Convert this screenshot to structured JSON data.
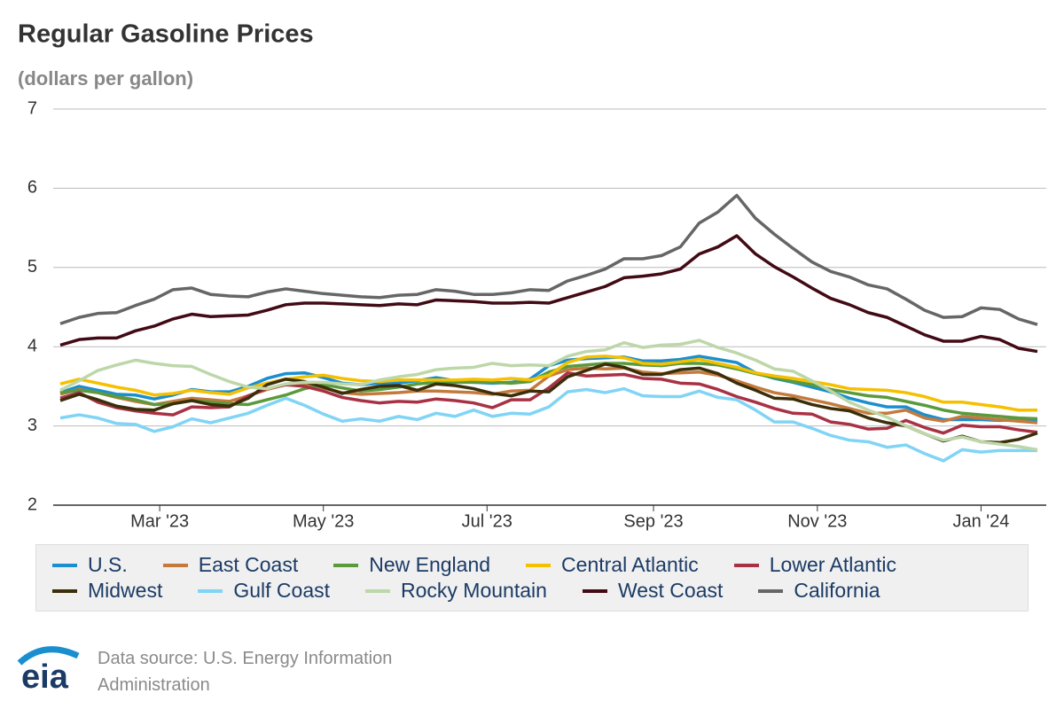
{
  "chart_data": {
    "type": "line",
    "title": "Regular Gasoline Prices",
    "subtitle": "(dollars per gallon)",
    "xlim": [
      0,
      52
    ],
    "xticks": [
      {
        "value": 5.29,
        "label": "Mar '23"
      },
      {
        "value": 14.0,
        "label": "May '23"
      },
      {
        "value": 22.71,
        "label": "Jul '23"
      },
      {
        "value": 31.57,
        "label": "Sep '23"
      },
      {
        "value": 40.29,
        "label": "Nov '23"
      },
      {
        "value": 49.0,
        "label": "Jan '24"
      }
    ],
    "ylim": [
      2,
      7
    ],
    "yticks": [
      2,
      3,
      4,
      5,
      6,
      7
    ],
    "grid": true,
    "legend": "bottom",
    "series": [
      {
        "name": "U.S.",
        "color": "#1a8fd0",
        "values": [
          3.42,
          3.5,
          3.45,
          3.4,
          3.39,
          3.34,
          3.39,
          3.46,
          3.43,
          3.43,
          3.5,
          3.6,
          3.66,
          3.67,
          3.61,
          3.54,
          3.52,
          3.54,
          3.54,
          3.57,
          3.61,
          3.57,
          3.55,
          3.54,
          3.55,
          3.59,
          3.76,
          3.83,
          3.85,
          3.86,
          3.87,
          3.82,
          3.82,
          3.84,
          3.88,
          3.84,
          3.8,
          3.67,
          3.6,
          3.55,
          3.49,
          3.43,
          3.35,
          3.29,
          3.24,
          3.24,
          3.14,
          3.08,
          3.08,
          3.08,
          3.07,
          3.08,
          3.07
        ]
      },
      {
        "name": "East Coast",
        "color": "#c47a3c",
        "values": [
          3.4,
          3.46,
          3.42,
          3.36,
          3.31,
          3.27,
          3.31,
          3.35,
          3.33,
          3.31,
          3.38,
          3.46,
          3.52,
          3.53,
          3.48,
          3.42,
          3.4,
          3.41,
          3.42,
          3.44,
          3.44,
          3.43,
          3.42,
          3.4,
          3.44,
          3.45,
          3.63,
          3.71,
          3.73,
          3.72,
          3.73,
          3.68,
          3.66,
          3.67,
          3.68,
          3.64,
          3.57,
          3.49,
          3.42,
          3.38,
          3.33,
          3.28,
          3.22,
          3.16,
          3.16,
          3.2,
          3.1,
          3.06,
          3.12,
          3.1,
          3.08,
          3.06,
          3.04
        ]
      },
      {
        "name": "New England",
        "color": "#5a9a3c",
        "values": [
          3.42,
          3.45,
          3.42,
          3.37,
          3.33,
          3.27,
          3.28,
          3.32,
          3.3,
          3.28,
          3.27,
          3.33,
          3.39,
          3.47,
          3.52,
          3.48,
          3.44,
          3.46,
          3.49,
          3.53,
          3.55,
          3.55,
          3.55,
          3.55,
          3.54,
          3.56,
          3.68,
          3.75,
          3.77,
          3.79,
          3.79,
          3.77,
          3.76,
          3.79,
          3.79,
          3.77,
          3.72,
          3.66,
          3.61,
          3.56,
          3.52,
          3.46,
          3.42,
          3.38,
          3.36,
          3.31,
          3.26,
          3.2,
          3.16,
          3.14,
          3.12,
          3.1,
          3.09
        ]
      },
      {
        "name": "Central Atlantic",
        "color": "#f5c000",
        "values": [
          3.53,
          3.59,
          3.54,
          3.49,
          3.45,
          3.39,
          3.41,
          3.45,
          3.42,
          3.4,
          3.48,
          3.54,
          3.59,
          3.62,
          3.64,
          3.6,
          3.57,
          3.56,
          3.58,
          3.58,
          3.58,
          3.58,
          3.59,
          3.58,
          3.6,
          3.58,
          3.64,
          3.8,
          3.87,
          3.88,
          3.86,
          3.79,
          3.78,
          3.81,
          3.84,
          3.79,
          3.74,
          3.67,
          3.63,
          3.6,
          3.56,
          3.52,
          3.47,
          3.46,
          3.45,
          3.42,
          3.37,
          3.3,
          3.3,
          3.27,
          3.24,
          3.2,
          3.2
        ]
      },
      {
        "name": "Lower Atlantic",
        "color": "#a83244",
        "values": [
          3.35,
          3.42,
          3.3,
          3.23,
          3.19,
          3.16,
          3.14,
          3.24,
          3.23,
          3.24,
          3.38,
          3.47,
          3.52,
          3.5,
          3.44,
          3.36,
          3.32,
          3.29,
          3.31,
          3.3,
          3.34,
          3.32,
          3.29,
          3.23,
          3.33,
          3.33,
          3.48,
          3.67,
          3.63,
          3.64,
          3.65,
          3.6,
          3.59,
          3.54,
          3.53,
          3.46,
          3.37,
          3.3,
          3.22,
          3.16,
          3.15,
          3.05,
          3.02,
          2.96,
          2.97,
          3.07,
          2.98,
          2.91,
          3.01,
          2.99,
          2.99,
          2.95,
          2.92
        ]
      },
      {
        "name": "Midwest",
        "color": "#3b2e0a",
        "values": [
          3.32,
          3.4,
          3.33,
          3.25,
          3.21,
          3.2,
          3.28,
          3.32,
          3.27,
          3.25,
          3.35,
          3.52,
          3.59,
          3.56,
          3.49,
          3.41,
          3.46,
          3.5,
          3.51,
          3.45,
          3.53,
          3.51,
          3.47,
          3.41,
          3.38,
          3.44,
          3.43,
          3.62,
          3.7,
          3.78,
          3.74,
          3.65,
          3.65,
          3.71,
          3.73,
          3.66,
          3.54,
          3.45,
          3.35,
          3.34,
          3.27,
          3.22,
          3.19,
          3.1,
          3.04,
          3.0,
          2.9,
          2.81,
          2.87,
          2.8,
          2.79,
          2.83,
          2.91
        ]
      },
      {
        "name": "Gulf Coast",
        "color": "#80d4f6",
        "values": [
          3.1,
          3.14,
          3.1,
          3.03,
          3.02,
          2.93,
          2.99,
          3.09,
          3.04,
          3.1,
          3.16,
          3.26,
          3.35,
          3.26,
          3.15,
          3.06,
          3.09,
          3.06,
          3.12,
          3.08,
          3.16,
          3.12,
          3.2,
          3.12,
          3.16,
          3.15,
          3.24,
          3.43,
          3.46,
          3.42,
          3.47,
          3.38,
          3.37,
          3.37,
          3.44,
          3.36,
          3.33,
          3.2,
          3.05,
          3.05,
          2.97,
          2.88,
          2.82,
          2.8,
          2.73,
          2.76,
          2.65,
          2.56,
          2.7,
          2.67,
          2.69,
          2.69,
          2.69
        ]
      },
      {
        "name": "Rocky Mountain",
        "color": "#bdd7a9",
        "values": [
          3.45,
          3.57,
          3.7,
          3.77,
          3.83,
          3.79,
          3.76,
          3.75,
          3.65,
          3.56,
          3.49,
          3.47,
          3.53,
          3.55,
          3.55,
          3.53,
          3.52,
          3.58,
          3.62,
          3.65,
          3.71,
          3.73,
          3.74,
          3.79,
          3.76,
          3.77,
          3.76,
          3.88,
          3.94,
          3.96,
          4.05,
          3.99,
          4.02,
          4.03,
          4.08,
          3.99,
          3.92,
          3.83,
          3.72,
          3.69,
          3.57,
          3.44,
          3.3,
          3.2,
          3.11,
          3.0,
          2.9,
          2.82,
          2.86,
          2.8,
          2.77,
          2.74,
          2.7
        ]
      },
      {
        "name": "West Coast",
        "color": "#420a14",
        "values": [
          4.02,
          4.09,
          4.11,
          4.11,
          4.2,
          4.26,
          4.35,
          4.41,
          4.38,
          4.39,
          4.4,
          4.46,
          4.53,
          4.55,
          4.55,
          4.54,
          4.53,
          4.52,
          4.54,
          4.53,
          4.59,
          4.58,
          4.57,
          4.55,
          4.55,
          4.56,
          4.55,
          4.62,
          4.69,
          4.76,
          4.87,
          4.89,
          4.92,
          4.98,
          5.17,
          5.26,
          5.4,
          5.17,
          5.01,
          4.88,
          4.74,
          4.61,
          4.53,
          4.43,
          4.37,
          4.26,
          4.15,
          4.07,
          4.07,
          4.13,
          4.09,
          3.98,
          3.94
        ]
      },
      {
        "name": "California",
        "color": "#666666",
        "values": [
          4.29,
          4.37,
          4.42,
          4.43,
          4.52,
          4.6,
          4.72,
          4.74,
          4.66,
          4.64,
          4.63,
          4.69,
          4.73,
          4.7,
          4.67,
          4.65,
          4.63,
          4.62,
          4.65,
          4.66,
          4.72,
          4.7,
          4.66,
          4.66,
          4.68,
          4.72,
          4.71,
          4.83,
          4.9,
          4.98,
          5.11,
          5.11,
          5.15,
          5.26,
          5.56,
          5.7,
          5.91,
          5.62,
          5.42,
          5.24,
          5.07,
          4.95,
          4.88,
          4.78,
          4.73,
          4.6,
          4.46,
          4.37,
          4.38,
          4.49,
          4.47,
          4.35,
          4.28
        ]
      }
    ],
    "source": "Data source: U.S. Energy Information Administration",
    "logo": "eia"
  }
}
